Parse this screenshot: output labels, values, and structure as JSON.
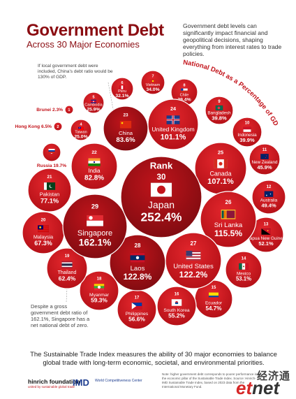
{
  "title": "Government Debt",
  "subtitle": "Across 30 Major Economies",
  "intro": "Government debt levels can significantly impact financial and geopolitical decisions, shaping everything from interest rates to trade policies.",
  "china_note": "If local government debt were included, China's debt ratio would be 130% of GDP.",
  "singapore_note": "Despite a gross government debt ratio of 162.1%, Singapore has a net national debt of zero.",
  "footer": "The Sustainable Trade Index measures the ability of 30 major economies to balance global trade with long-term economic, societal, and environmental priorities.",
  "logos": {
    "hinrich": "hinrich foundation",
    "hinrich_tag": "united by sustainable global trade",
    "imd": "IMD",
    "imd_center": "World Competitiveness Center"
  },
  "source_note": "Note: higher government debt corresponds to poorer performance in the economic pillar of the Sustainable Trade Index. Source: Hinrich-IMD Sustainable Trade Index, based on 2023 data from the International Monetary Fund.",
  "watermark": {
    "cn": "经济通",
    "et": "et",
    "net": "net"
  },
  "colors": {
    "primary": "#c3141b",
    "dark": "#8b0d12",
    "rank1": "#a50f15"
  },
  "chart_data": {
    "type": "bubble",
    "title": "Government Debt",
    "subtitle": "Across 30 Major Economies",
    "arc_label": "National Debt as a Percentage of GDP",
    "rank_label": "Rank",
    "unit": "% of GDP",
    "series": [
      {
        "rank": 1,
        "country": "Brunei",
        "value": 2.3,
        "label": "2.3%",
        "flag": "brunei-flag-icon"
      },
      {
        "rank": 2,
        "country": "Hong Kong",
        "value": 6.5,
        "label": "6.5%",
        "flag": "hong-kong-flag-icon"
      },
      {
        "rank": 3,
        "country": "Russia",
        "value": 19.7,
        "label": "19.7%",
        "flag": "russia-flag-icon"
      },
      {
        "rank": 4,
        "country": "Taiwan",
        "value": 25.0,
        "label": "25.0%",
        "flag": "taiwan-flag-icon"
      },
      {
        "rank": 5,
        "country": "Cambodia",
        "value": 25.9,
        "label": "25.9%",
        "flag": "cambodia-flag-icon"
      },
      {
        "rank": 6,
        "country": "Peru",
        "value": 32.1,
        "label": "32.1%",
        "flag": "peru-flag-icon"
      },
      {
        "rank": 7,
        "country": "Vietnam",
        "value": 34.0,
        "label": "34.0%",
        "flag": "vietnam-flag-icon"
      },
      {
        "rank": 8,
        "country": "Chile",
        "value": 39.4,
        "label": "39.4%",
        "flag": "chile-flag-icon"
      },
      {
        "rank": 9,
        "country": "Bangladesh",
        "value": 39.8,
        "label": "39.8%",
        "flag": "bangladesh-flag-icon"
      },
      {
        "rank": 10,
        "country": "Indonesia",
        "value": 39.9,
        "label": "39.9%",
        "flag": "indonesia-flag-icon"
      },
      {
        "rank": 11,
        "country": "New Zealand",
        "value": 45.9,
        "label": "45.9%",
        "flag": "new-zealand-flag-icon"
      },
      {
        "rank": 12,
        "country": "Australia",
        "value": 49.4,
        "label": "49.4%",
        "flag": "australia-flag-icon"
      },
      {
        "rank": 13,
        "country": "Papua New Guinea",
        "value": 52.1,
        "label": "52.1%",
        "flag": "papua-new-guinea-flag-icon"
      },
      {
        "rank": 14,
        "country": "Mexico",
        "value": 53.1,
        "label": "53.1%",
        "flag": "mexico-flag-icon"
      },
      {
        "rank": 15,
        "country": "Ecuador",
        "value": 54.7,
        "label": "54.7%",
        "flag": "ecuador-flag-icon"
      },
      {
        "rank": 16,
        "country": "South Korea",
        "value": 55.2,
        "label": "55.2%",
        "flag": "south-korea-flag-icon"
      },
      {
        "rank": 17,
        "country": "Philippines",
        "value": 56.6,
        "label": "56.6%",
        "flag": "philippines-flag-icon"
      },
      {
        "rank": 18,
        "country": "Myanmar",
        "value": 59.3,
        "label": "59.3%",
        "flag": "myanmar-flag-icon"
      },
      {
        "rank": 19,
        "country": "Thailand",
        "value": 62.4,
        "label": "62.4%",
        "flag": "thailand-flag-icon"
      },
      {
        "rank": 20,
        "country": "Malaysia",
        "value": 67.3,
        "label": "67.3%",
        "flag": "malaysia-flag-icon"
      },
      {
        "rank": 21,
        "country": "Pakistan",
        "value": 77.1,
        "label": "77.1%",
        "flag": "pakistan-flag-icon"
      },
      {
        "rank": 22,
        "country": "India",
        "value": 82.8,
        "label": "82.8%",
        "flag": "india-flag-icon"
      },
      {
        "rank": 23,
        "country": "China",
        "value": 83.6,
        "label": "83.6%",
        "flag": "china-flag-icon"
      },
      {
        "rank": 24,
        "country": "United Kingdom",
        "value": 101.1,
        "label": "101.1%",
        "flag": "uk-flag-icon"
      },
      {
        "rank": 25,
        "country": "Canada",
        "value": 107.1,
        "label": "107.1%",
        "flag": "canada-flag-icon"
      },
      {
        "rank": 26,
        "country": "Sri Lanka",
        "value": 115.5,
        "label": "115.5%",
        "flag": "sri-lanka-flag-icon"
      },
      {
        "rank": 27,
        "country": "United States",
        "value": 122.2,
        "label": "122.2%",
        "flag": "usa-flag-icon"
      },
      {
        "rank": 28,
        "country": "Laos",
        "value": 122.8,
        "label": "122.8%",
        "flag": "laos-flag-icon"
      },
      {
        "rank": 29,
        "country": "Singapore",
        "value": 162.1,
        "label": "162.1%",
        "flag": "singapore-flag-icon"
      },
      {
        "rank": 30,
        "country": "Japan",
        "value": 252.4,
        "label": "252.4%",
        "flag": "japan-flag-icon"
      }
    ]
  }
}
